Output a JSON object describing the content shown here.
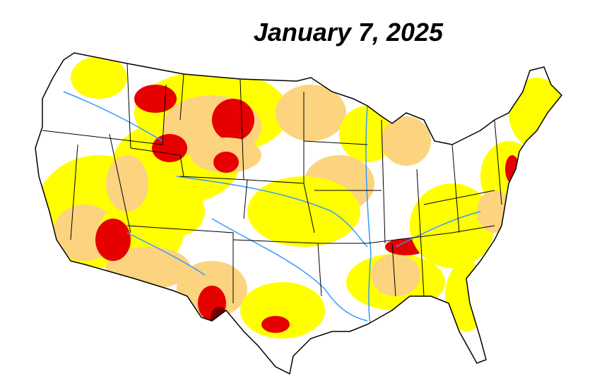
{
  "map": {
    "title": "January 7, 2025"
  }
}
